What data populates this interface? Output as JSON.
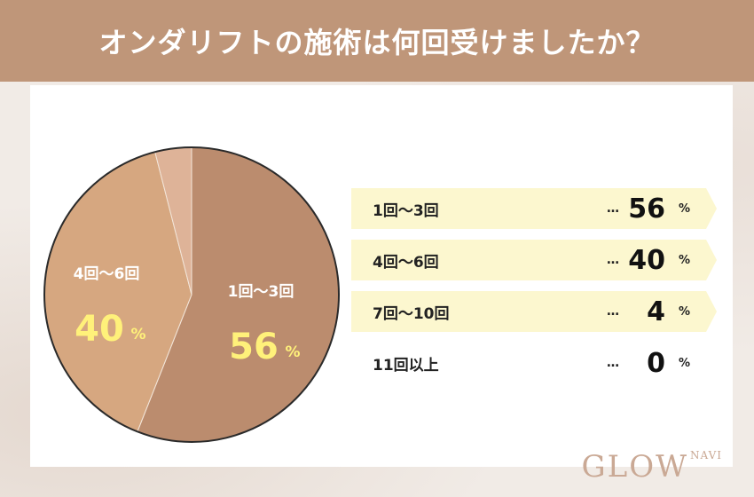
{
  "header": {
    "title": "オンダリフトの施術は何回受けましたか？"
  },
  "chart_data": {
    "type": "pie",
    "title": "オンダリフトの施術は何回受けましたか？",
    "unit": "%",
    "categories": [
      "1回～3回",
      "4回～6回",
      "7回～10回",
      "11回以上"
    ],
    "values": [
      56,
      40,
      4,
      0
    ],
    "colors": [
      "#bb8c6e",
      "#d6a780",
      "#deb398",
      "#e8cbb4"
    ],
    "pie_labels": [
      {
        "label": "1回～3回",
        "value": "56",
        "unit": "%"
      },
      {
        "label": "4回～6回",
        "value": "40",
        "unit": "%"
      }
    ],
    "legend": [
      {
        "label": "1回～3回",
        "dots": "…",
        "value": "56",
        "unit": "%",
        "highlight": true
      },
      {
        "label": "4回～6回",
        "dots": "…",
        "value": "40",
        "unit": "%",
        "highlight": true
      },
      {
        "label": "7回～10回",
        "dots": "…",
        "value": "4",
        "unit": "%",
        "highlight": true
      },
      {
        "label": "11回以上",
        "dots": "…",
        "value": "0",
        "unit": "%",
        "highlight": false
      }
    ],
    "label_colors": {
      "category": "#ffffff",
      "value": "#fff17a"
    }
  },
  "logo": {
    "text": "GLOW",
    "sub": "NAVI"
  }
}
